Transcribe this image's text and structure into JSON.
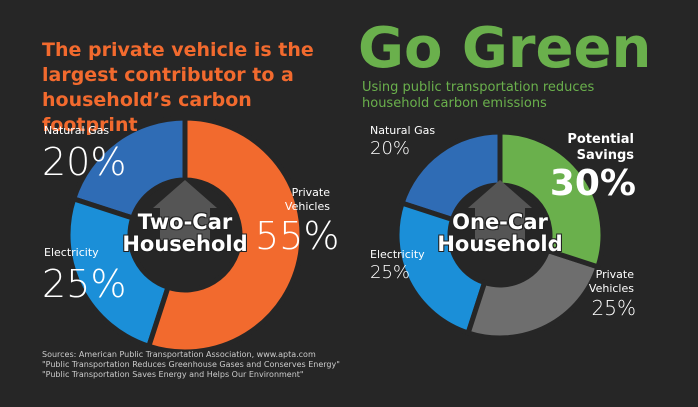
{
  "chart_data": [
    {
      "type": "pie",
      "title": "The private vehicle is the largest contributor to a household’s carbon footprint",
      "center_label": "Two-Car Household",
      "categories": [
        "Private Vehicles",
        "Electricity",
        "Natural Gas"
      ],
      "values": [
        55,
        25,
        20
      ],
      "value_labels": [
        "55%",
        "25%",
        "20%"
      ],
      "colors": [
        "#f26a2e",
        "#1b8fd8",
        "#2f6cb5"
      ]
    },
    {
      "type": "pie",
      "title": "Go Green",
      "subtitle": "Using public transportation reduces household carbon emissions",
      "center_label": "One-Car Household",
      "categories": [
        "Potential Savings",
        "Private Vehicles",
        "Electricity",
        "Natural Gas"
      ],
      "values": [
        30,
        25,
        25,
        20
      ],
      "value_labels": [
        "30%",
        "25%",
        "25%",
        "20%"
      ],
      "colors": [
        "#6ab04c",
        "#6e6e6e",
        "#1b8fd8",
        "#2f6cb5"
      ]
    }
  ],
  "sources": [
    "Sources: American Public Transportation Association, www.apta.com",
    "\"Public Transportation Reduces Greenhouse Gases and Conserves Energy\"",
    "\"Public Transportation Saves Energy and Helps Our Environment\""
  ]
}
